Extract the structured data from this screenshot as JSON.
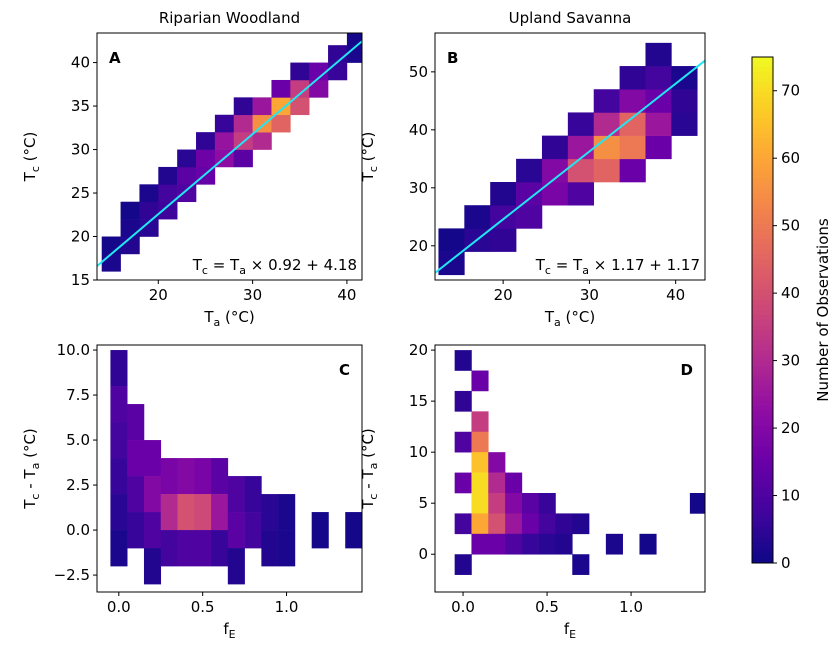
{
  "chart_data": [
    {
      "type": "heatmap",
      "title": "Riparian Woodland",
      "panel_label": "A",
      "xlabel": [
        "T",
        "a",
        " (°C)"
      ],
      "ylabel": [
        "T",
        "c",
        " (°C)"
      ],
      "xlim": [
        13.5,
        41.6
      ],
      "ylim": [
        15,
        43.4
      ],
      "xticks": [
        20,
        30,
        40
      ],
      "yticks": [
        15,
        20,
        25,
        30,
        35,
        40
      ],
      "bin_size": [
        2,
        2
      ],
      "x": [
        15,
        15,
        17,
        17,
        17,
        19,
        19,
        19,
        21,
        21,
        21,
        23,
        23,
        23,
        25,
        25,
        25,
        27,
        27,
        27,
        29,
        29,
        29,
        29,
        31,
        31,
        31,
        33,
        33,
        33,
        35,
        35,
        35,
        37,
        37,
        39,
        39,
        41,
        41
      ],
      "y": [
        17,
        19,
        19,
        21,
        23,
        21,
        23,
        25,
        23,
        25,
        27,
        25,
        27,
        29,
        27,
        29,
        31,
        29,
        31,
        33,
        29,
        31,
        33,
        35,
        31,
        33,
        35,
        33,
        35,
        37,
        35,
        37,
        39,
        37,
        39,
        39,
        41,
        41,
        43
      ],
      "values": [
        2,
        1,
        3,
        2,
        1,
        4,
        5,
        2,
        7,
        8,
        3,
        10,
        12,
        4,
        14,
        16,
        5,
        22,
        24,
        6,
        12,
        35,
        30,
        5,
        30,
        55,
        25,
        45,
        60,
        15,
        40,
        35,
        5,
        20,
        15,
        6,
        5,
        2,
        1
      ],
      "fit": {
        "slope": 0.92,
        "intercept": 4.18,
        "color": "#22e6f2"
      },
      "annotation": [
        "T",
        "c",
        " = T",
        "a",
        " × 0.92 + 4.18"
      ]
    },
    {
      "type": "heatmap",
      "title": "Upland Savanna",
      "panel_label": "B",
      "xlabel": [
        "T",
        "a",
        " (°C)"
      ],
      "ylabel": [
        "T",
        "c",
        " (°C)"
      ],
      "xlim": [
        12.1,
        43.4
      ],
      "ylim": [
        14.1,
        56.7
      ],
      "xticks": [
        20,
        30,
        40
      ],
      "yticks": [
        20,
        30,
        40,
        50
      ],
      "bin_size": [
        3,
        4
      ],
      "x": [
        14,
        14,
        17,
        17,
        20,
        20,
        20,
        23,
        23,
        23,
        26,
        26,
        26,
        29,
        29,
        29,
        29,
        32,
        32,
        32,
        32,
        35,
        35,
        35,
        35,
        35,
        38,
        38,
        38,
        38,
        38,
        41,
        41,
        41
      ],
      "y": [
        17,
        21,
        21,
        25,
        21,
        25,
        29,
        25,
        29,
        33,
        29,
        33,
        37,
        29,
        33,
        37,
        41,
        33,
        37,
        41,
        45,
        33,
        37,
        41,
        45,
        49,
        37,
        41,
        45,
        49,
        53,
        41,
        45,
        49
      ],
      "values": [
        2,
        1,
        4,
        2,
        5,
        8,
        3,
        10,
        12,
        4,
        18,
        20,
        5,
        10,
        40,
        25,
        6,
        45,
        55,
        30,
        8,
        15,
        50,
        45,
        20,
        5,
        15,
        25,
        15,
        8,
        3,
        4,
        5,
        2
      ],
      "fit": {
        "slope": 1.17,
        "intercept": 1.17,
        "color": "#22e6f2"
      },
      "annotation": [
        "T",
        "c",
        " = T",
        "a",
        " × 1.17 + 1.17"
      ]
    },
    {
      "type": "heatmap",
      "panel_label": "C",
      "xlabel": [
        "f",
        "E"
      ],
      "ylabel": [
        "T",
        "c",
        " - T",
        "a",
        " (°C)"
      ],
      "xlim": [
        -0.13,
        1.45
      ],
      "ylim": [
        -3.44,
        10.28
      ],
      "xticks": [
        {
          "value": 0,
          "label": "0.0"
        },
        0.5,
        {
          "value": 1,
          "label": "1.0"
        }
      ],
      "yticks": [
        {
          "value": -2.5,
          "label": "−2.5"
        },
        {
          "value": 0,
          "label": "0.0"
        },
        2.5,
        {
          "value": 5,
          "label": "5.0"
        },
        7.5,
        {
          "value": 10,
          "label": "10.0"
        }
      ],
      "bin_size": [
        0.1,
        2
      ],
      "x": [
        0,
        0,
        0,
        0,
        0,
        0,
        0.1,
        0.1,
        0.1,
        0.1,
        0.2,
        0.2,
        0.2,
        0.2,
        0.3,
        0.3,
        0.3,
        0.4,
        0.4,
        0.4,
        0.5,
        0.5,
        0.5,
        0.6,
        0.6,
        0.6,
        0.7,
        0.7,
        0.7,
        0.8,
        0.8,
        0.9,
        0.9,
        1.0,
        1.0,
        1.2,
        1.4
      ],
      "y": [
        9,
        7,
        5,
        3,
        1,
        -1,
        6,
        4,
        2,
        0,
        4,
        2,
        0,
        -2,
        3,
        1,
        -1,
        3,
        1,
        -1,
        3,
        1,
        -1,
        3,
        1,
        -1,
        2,
        0,
        -2,
        2,
        0,
        1,
        -1,
        1,
        -1,
        0,
        0
      ],
      "values": [
        5,
        10,
        8,
        6,
        4,
        2,
        12,
        15,
        10,
        6,
        15,
        20,
        10,
        3,
        18,
        30,
        8,
        20,
        40,
        10,
        18,
        38,
        10,
        12,
        25,
        6,
        10,
        12,
        3,
        6,
        8,
        4,
        3,
        2,
        2,
        1,
        1
      ]
    },
    {
      "type": "heatmap",
      "panel_label": "D",
      "xlabel": [
        "f",
        "E"
      ],
      "ylabel": [
        "T",
        "c",
        " - T",
        "a",
        " (°C)"
      ],
      "xlim": [
        -0.167,
        1.44
      ],
      "ylim": [
        -3.7,
        20.5
      ],
      "xticks": [
        {
          "value": 0,
          "label": "0.0"
        },
        0.5,
        {
          "value": 1,
          "label": "1.0"
        }
      ],
      "yticks": [
        0,
        5,
        10,
        15,
        20
      ],
      "bin_size": [
        0.1,
        2
      ],
      "x": [
        0,
        0,
        0,
        0,
        0,
        0,
        0.1,
        0.1,
        0.1,
        0.1,
        0.1,
        0.1,
        0.1,
        0.1,
        0.2,
        0.2,
        0.2,
        0.2,
        0.2,
        0.3,
        0.3,
        0.3,
        0.3,
        0.4,
        0.4,
        0.4,
        0.5,
        0.5,
        0.5,
        0.6,
        0.6,
        0.7,
        0.7,
        0.9,
        1.1,
        1.4
      ],
      "y": [
        19,
        15,
        11,
        7,
        3,
        -1,
        17,
        13,
        11,
        9,
        7,
        5,
        3,
        1,
        9,
        7,
        5,
        3,
        1,
        7,
        5,
        3,
        1,
        5,
        3,
        1,
        5,
        3,
        1,
        3,
        1,
        3,
        -1,
        1,
        1,
        5
      ],
      "values": [
        3,
        5,
        10,
        15,
        8,
        3,
        15,
        35,
        50,
        65,
        70,
        70,
        60,
        15,
        20,
        30,
        35,
        40,
        15,
        15,
        20,
        25,
        10,
        12,
        15,
        6,
        6,
        8,
        4,
        5,
        3,
        3,
        2,
        2,
        1,
        1
      ]
    }
  ],
  "colorbar": {
    "label": "Number of Observations",
    "colormap": "plasma",
    "lim": [
      0,
      75
    ],
    "ticks": [
      0,
      10,
      20,
      30,
      40,
      50,
      60,
      70
    ]
  }
}
